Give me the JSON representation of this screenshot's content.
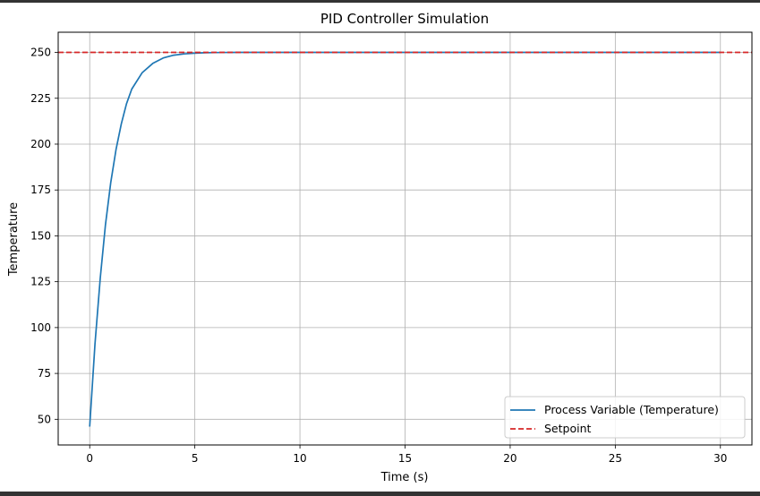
{
  "chart_data": {
    "type": "line",
    "title": "PID Controller Simulation",
    "xlabel": "Time (s)",
    "ylabel": "Temperature",
    "xlim": [
      -1.5,
      31.5
    ],
    "ylim": [
      36,
      261
    ],
    "xticks": [
      0,
      5,
      10,
      15,
      20,
      25,
      30
    ],
    "yticks": [
      50,
      75,
      100,
      125,
      150,
      175,
      200,
      225,
      250
    ],
    "grid": true,
    "legend_position": "bottom-right",
    "series": [
      {
        "name": "Process Variable (Temperature)",
        "color": "#1f77b4",
        "style": "solid",
        "x": [
          0,
          0.25,
          0.5,
          0.75,
          1,
          1.25,
          1.5,
          1.75,
          2,
          2.5,
          3,
          3.5,
          4,
          4.5,
          5,
          5.5,
          6,
          7,
          8,
          9,
          10,
          12,
          15,
          20,
          25,
          30
        ],
        "values": [
          46,
          91,
          127,
          156,
          179,
          197,
          211,
          222,
          230,
          239,
          244,
          247,
          248.5,
          249.2,
          249.6,
          249.8,
          249.9,
          250,
          250,
          250,
          250,
          250,
          250,
          250,
          250,
          250
        ]
      },
      {
        "name": "Setpoint",
        "color": "#d62728",
        "style": "dashed",
        "x": [
          -1.5,
          31.5
        ],
        "values": [
          250,
          250
        ]
      }
    ]
  }
}
